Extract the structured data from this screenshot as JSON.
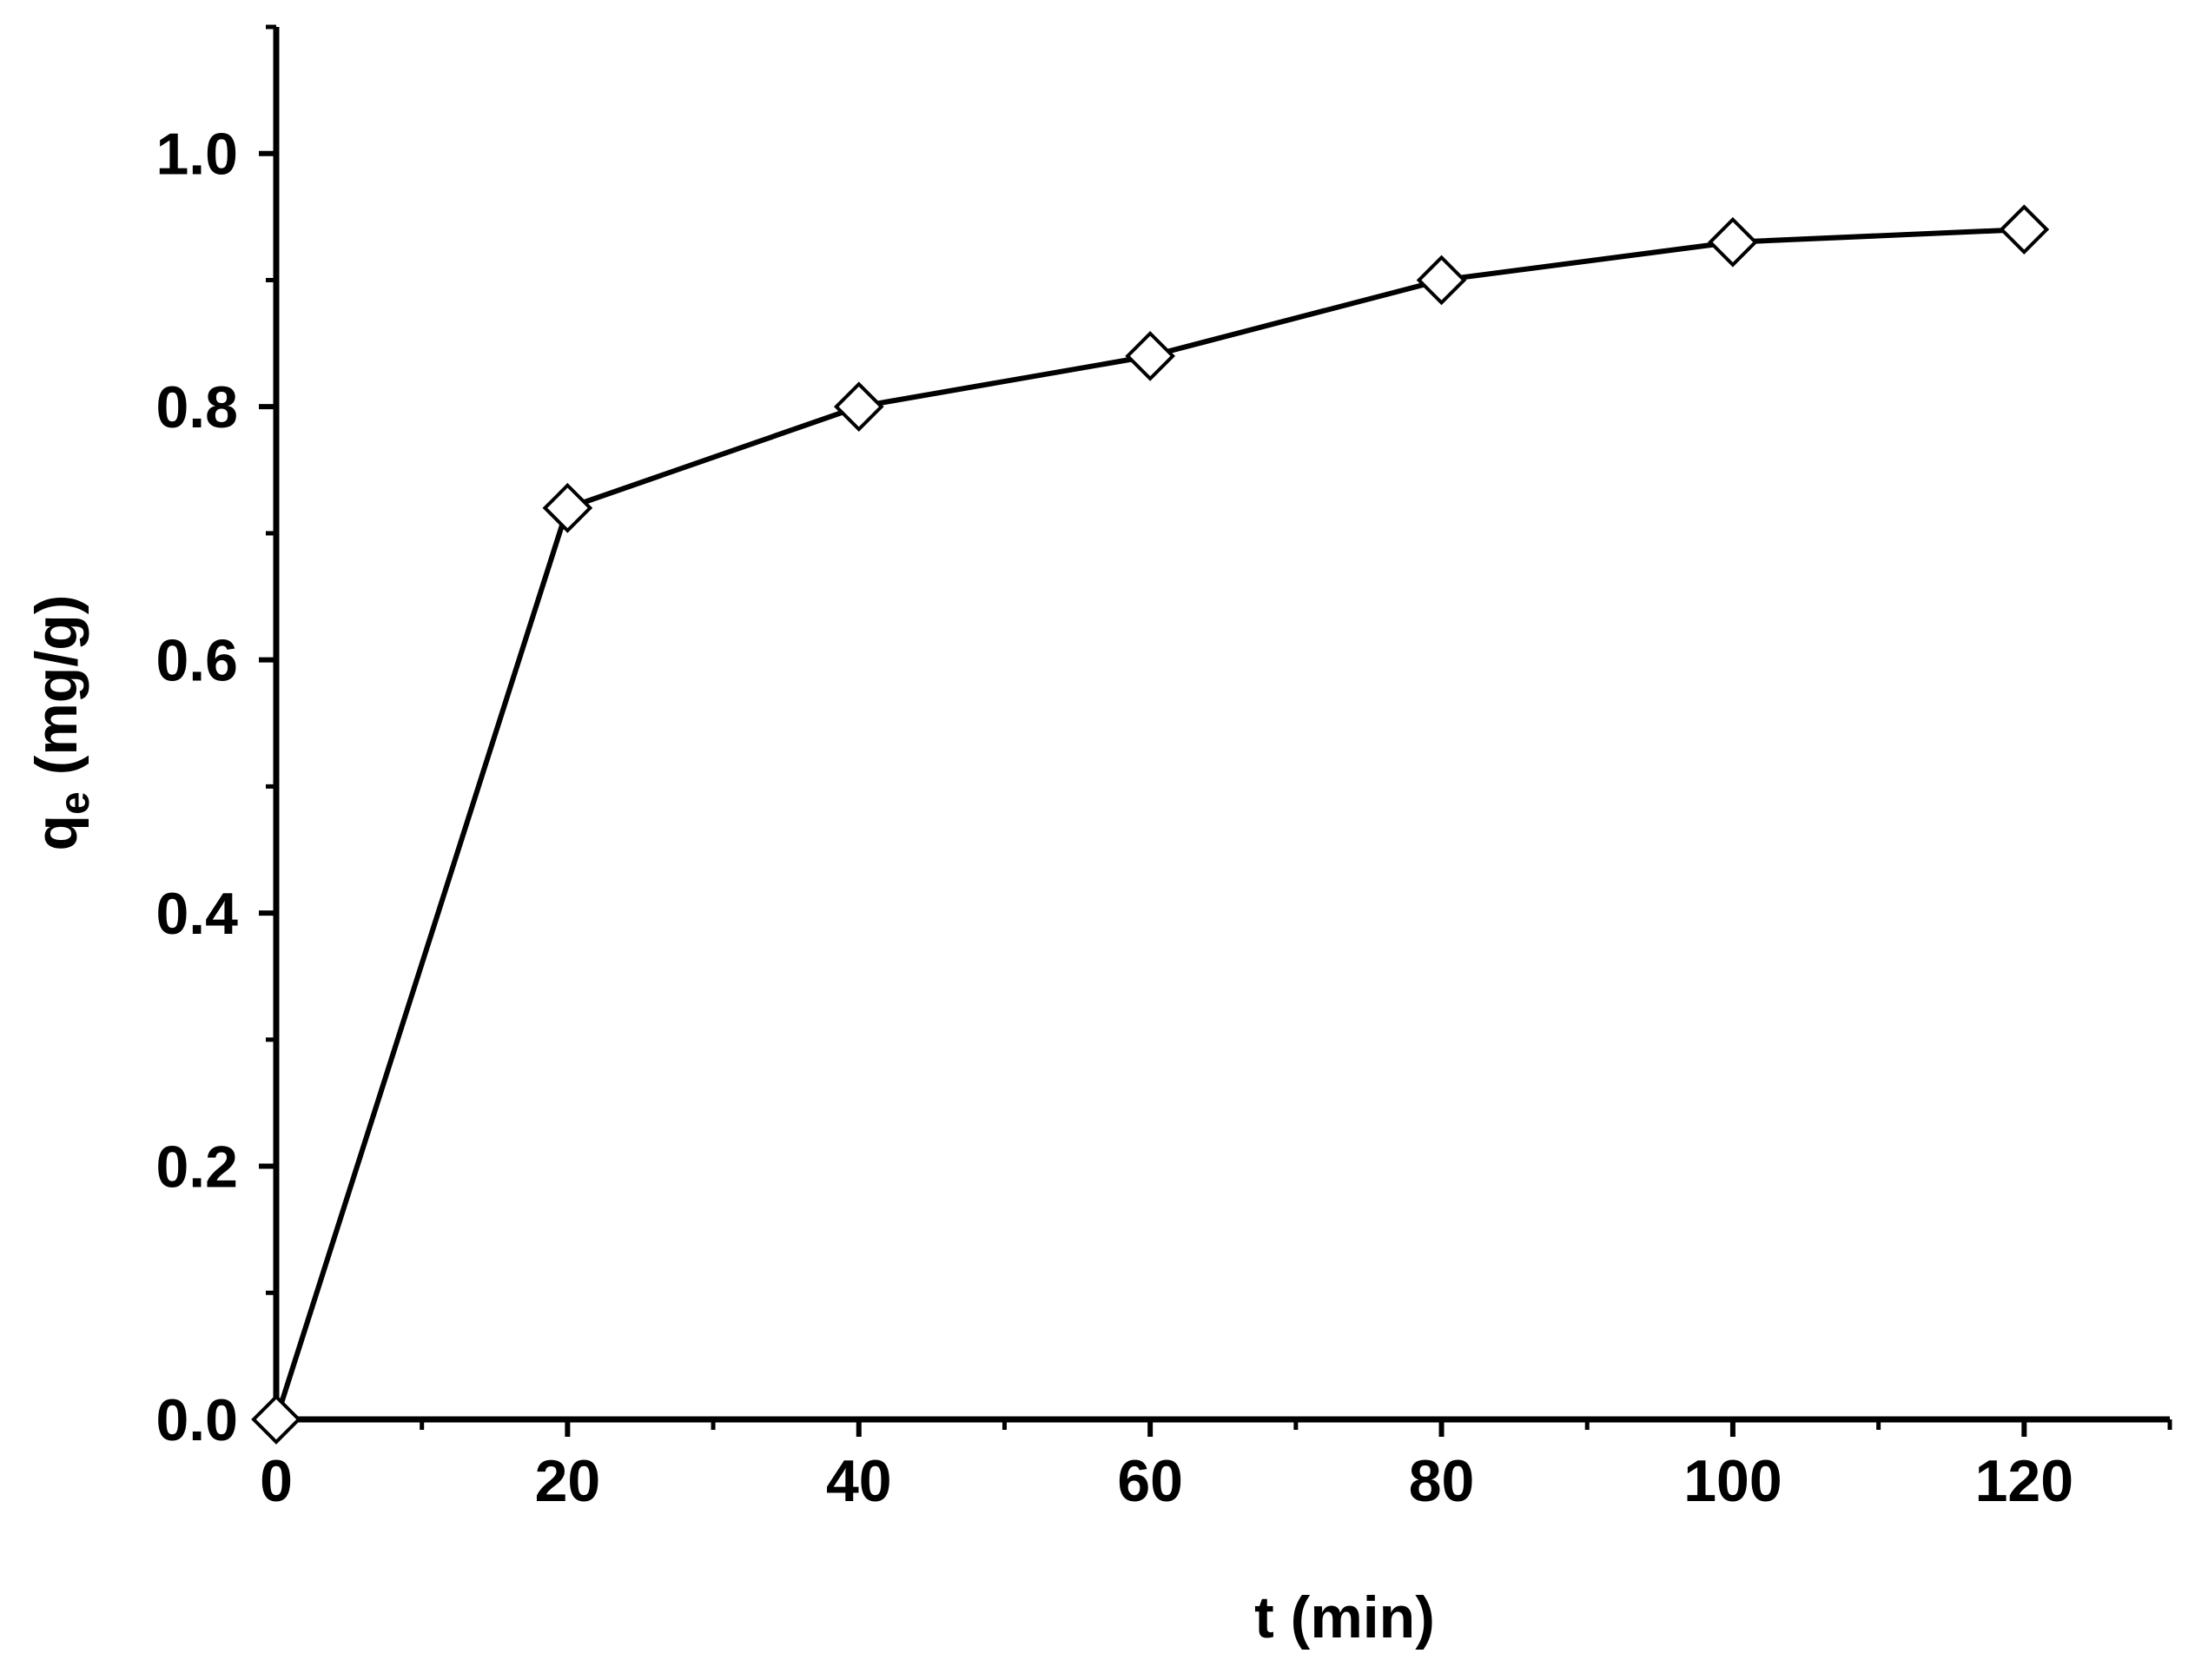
{
  "chart_data": {
    "type": "line",
    "title": "",
    "xlabel": "t (min)",
    "ylabel": {
      "main": "q",
      "sub": "e",
      "unit": " (mg/g)"
    },
    "xlim": [
      0,
      130
    ],
    "ylim": [
      0,
      1.1
    ],
    "x_ticks": [
      0,
      20,
      40,
      60,
      80,
      100,
      120
    ],
    "x_tick_labels": [
      "0",
      "20",
      "40",
      "60",
      "80",
      "100",
      "120"
    ],
    "x_minor_ticks": [
      10,
      30,
      50,
      70,
      90,
      110,
      130
    ],
    "y_ticks": [
      0.0,
      0.2,
      0.4,
      0.6,
      0.8,
      1.0
    ],
    "y_tick_labels": [
      "0.0",
      "0.2",
      "0.4",
      "0.6",
      "0.8",
      "1.0"
    ],
    "y_minor_ticks": [
      0.1,
      0.3,
      0.5,
      0.7,
      0.9,
      1.1
    ],
    "grid": false,
    "series": [
      {
        "name": "qe",
        "marker": "open-diamond",
        "color": "#000000",
        "x": [
          0,
          20,
          40,
          60,
          80,
          100,
          120
        ],
        "y": [
          0.0,
          0.72,
          0.8,
          0.84,
          0.9,
          0.93,
          0.94
        ]
      }
    ]
  }
}
